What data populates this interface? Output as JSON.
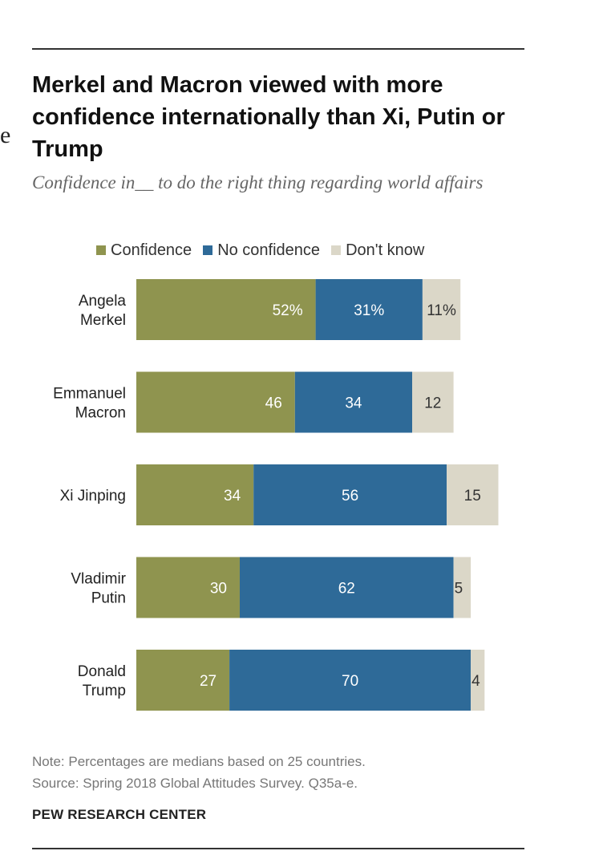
{
  "stray_glyph": "e",
  "chart_data": {
    "type": "bar",
    "orientation": "horizontal",
    "stacked": true,
    "title": "Merkel and Macron viewed with more confidence internationally than Xi, Putin or Trump",
    "subtitle": "Confidence in__ to do the right thing regarding world affairs",
    "categories": [
      [
        "Angela",
        "Merkel"
      ],
      [
        "Emmanuel",
        "Macron"
      ],
      [
        "Xi Jinping"
      ],
      [
        "Vladimir",
        "Putin"
      ],
      [
        "Donald",
        "Trump"
      ]
    ],
    "series": [
      {
        "name": "Confidence",
        "color": "#8f944f",
        "values": [
          52,
          46,
          34,
          30,
          27
        ],
        "labels": [
          "52%",
          "46",
          "34",
          "30",
          "27"
        ]
      },
      {
        "name": "No confidence",
        "color": "#2e6a98",
        "values": [
          31,
          34,
          56,
          62,
          70
        ],
        "labels": [
          "31%",
          "34",
          "56",
          "62",
          "70"
        ]
      },
      {
        "name": "Don't know",
        "color": "#dbd7c8",
        "values": [
          11,
          12,
          15,
          5,
          4
        ],
        "labels": [
          "11%",
          "12",
          "15",
          "5",
          "4"
        ]
      }
    ],
    "xlim": [
      0,
      100
    ],
    "grid": false,
    "legend_position": "top"
  },
  "notes": {
    "note": "Note: Percentages are medians based on 25 countries.",
    "source": "Source: Spring 2018 Global Attitudes Survey. Q35a-e."
  },
  "brand": "PEW RESEARCH CENTER"
}
